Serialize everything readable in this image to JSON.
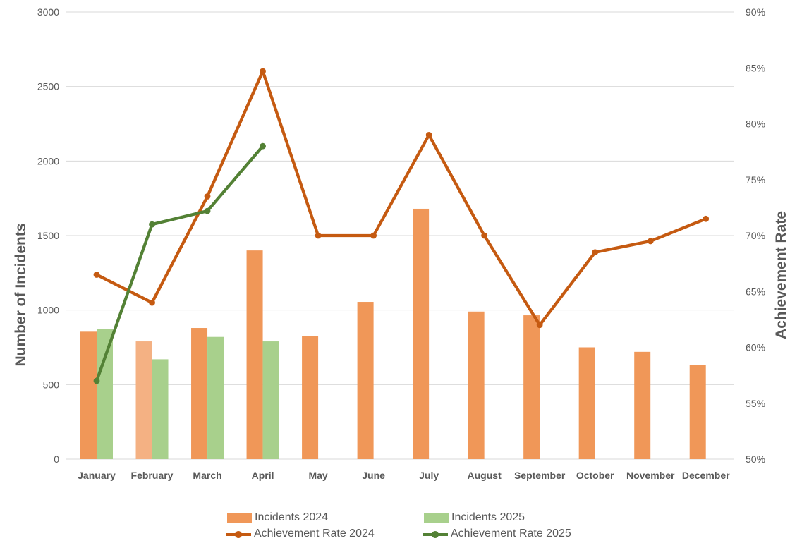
{
  "chart_data": {
    "type": "combo-bar-line",
    "title": "",
    "categories": [
      "January",
      "February",
      "March",
      "April",
      "May",
      "June",
      "July",
      "August",
      "September",
      "October",
      "November",
      "December"
    ],
    "series": [
      {
        "name": "Incidents 2024",
        "type": "bar",
        "axis": "left",
        "color": "#F09758",
        "point_colors": {
          "February": "#F4B183"
        },
        "values": [
          855,
          790,
          880,
          1400,
          825,
          1055,
          1680,
          990,
          965,
          750,
          720,
          630
        ]
      },
      {
        "name": "Incidents 2025",
        "type": "bar",
        "axis": "left",
        "color": "#A8D08C",
        "values": [
          875,
          670,
          820,
          790,
          null,
          null,
          null,
          null,
          null,
          null,
          null,
          null
        ]
      },
      {
        "name": "Achievement Rate 2024",
        "type": "line",
        "axis": "right",
        "color": "#C55A11",
        "values": [
          66.5,
          64,
          73.5,
          84.7,
          70,
          70,
          79,
          70,
          62,
          68.5,
          69.5,
          71.5
        ]
      },
      {
        "name": "Achievement Rate 2025",
        "type": "line",
        "axis": "right",
        "color": "#538135",
        "values": [
          57,
          71,
          72.2,
          78,
          null,
          null,
          null,
          null,
          null,
          null,
          null,
          null
        ]
      }
    ],
    "left_axis": {
      "title": "Number of Incidents",
      "min": 0,
      "max": 3000,
      "step": 500,
      "tick_labels": [
        "0",
        "500",
        "1000",
        "1500",
        "2000",
        "2500",
        "3000"
      ]
    },
    "right_axis": {
      "title": "Achievement Rate",
      "min": 50,
      "max": 90,
      "step": 5,
      "suffix": "%",
      "tick_labels": [
        "50%",
        "55%",
        "60%",
        "65%",
        "70%",
        "75%",
        "80%",
        "85%",
        "90%"
      ]
    },
    "grid": "horizontal",
    "legend_position": "bottom",
    "colors": {
      "grid": "#D9D9D9",
      "text": "#595959",
      "background": "#FFFFFF"
    }
  }
}
